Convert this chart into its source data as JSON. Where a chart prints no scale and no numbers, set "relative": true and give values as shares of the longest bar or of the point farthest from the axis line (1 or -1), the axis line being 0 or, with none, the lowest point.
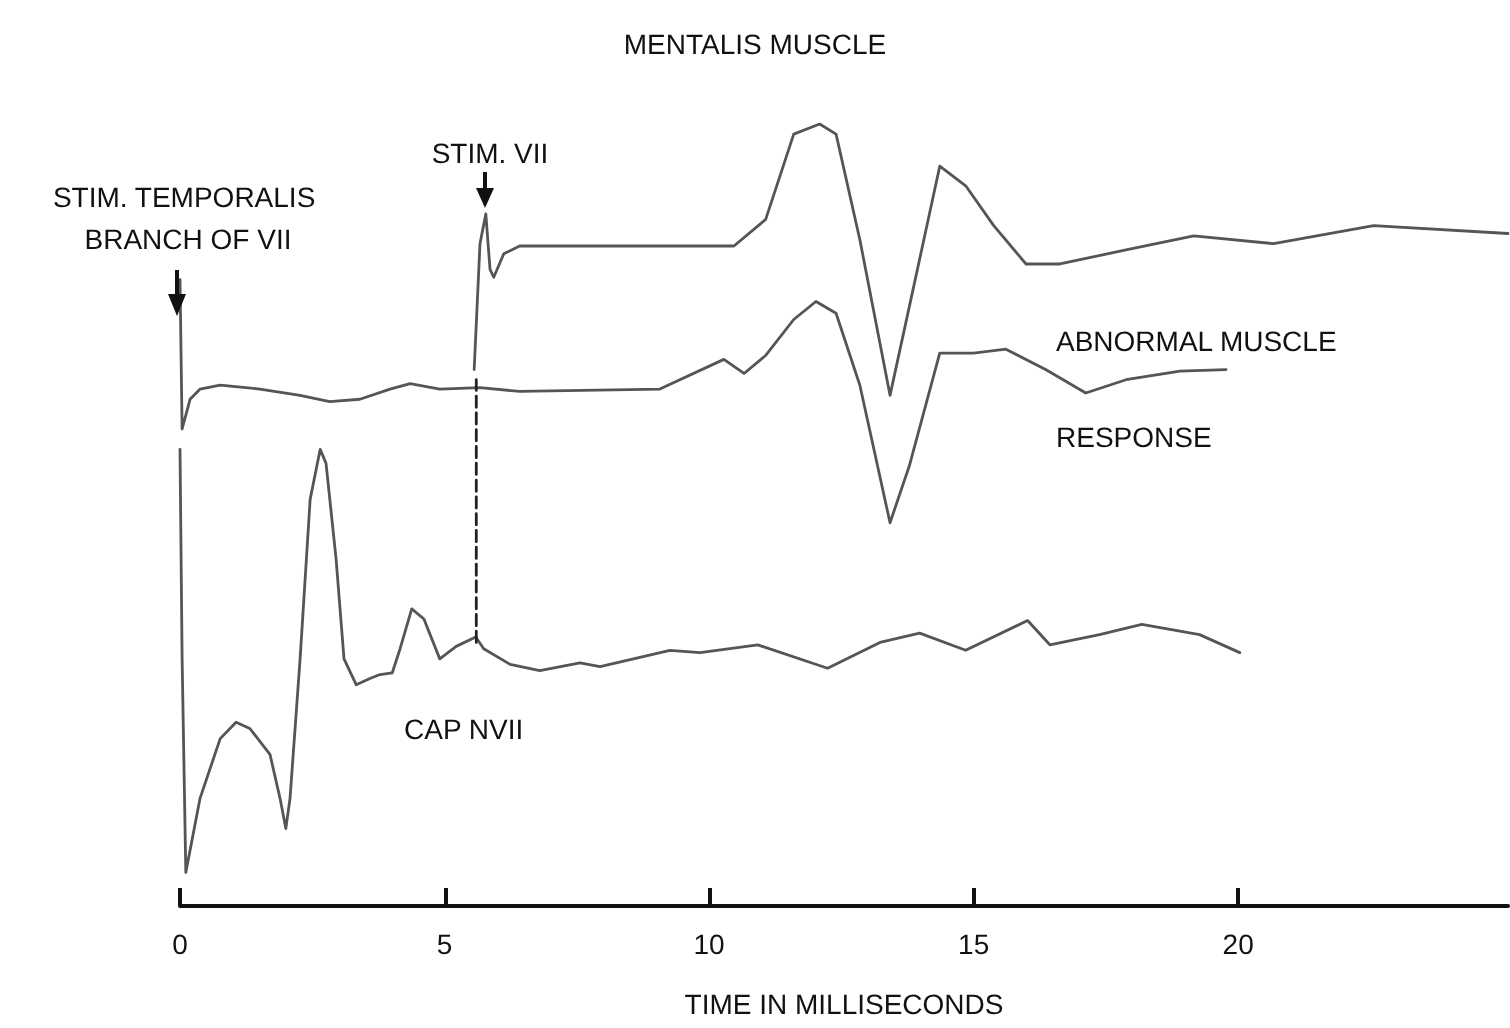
{
  "chart_data": {
    "type": "line",
    "relative": true,
    "title": "MENTALIS MUSCLE",
    "xlabel": "TIME IN MILLISECONDS",
    "xlim": [
      0,
      25.1
    ],
    "xticks": [
      0,
      5,
      10,
      15,
      20
    ],
    "tick_labels": "x",
    "grid": false,
    "marker": "none",
    "line_style": "solid",
    "annotations": [
      "STIM. TEMPORALIS BRANCH OF VII",
      "STIM. VII",
      "ABNORMAL MUSCLE",
      "RESPONSE",
      "CAP NVII"
    ],
    "series": [
      {
        "color": "#555555",
        "x": [
          5.56,
          5.67,
          5.78,
          5.86,
          5.93,
          6.12,
          6.42,
          10.47,
          11.07,
          11.6,
          12.09,
          12.4,
          12.85,
          13.42,
          13.87,
          14.36,
          14.85,
          15.38,
          15.99,
          16.63,
          17.88,
          19.16,
          20.67,
          22.56,
          25.1
        ],
        "values": [
          0.686,
          0.847,
          0.885,
          0.814,
          0.804,
          0.834,
          0.844,
          0.844,
          0.878,
          0.987,
          1,
          0.987,
          0.852,
          0.653,
          0.793,
          0.946,
          0.921,
          0.87,
          0.821,
          0.821,
          0.839,
          0.857,
          0.847,
          0.87,
          0.86
        ]
      },
      {
        "color": "#555555",
        "x": [
          0,
          0.04,
          0.19,
          0.38,
          0.76,
          1.51,
          2.27,
          2.83,
          3.4,
          3.97,
          4.35,
          4.91,
          5.67,
          6.42,
          9.07,
          10.28,
          10.66,
          11.07,
          11.6,
          12.02,
          12.4,
          12.85,
          13.42,
          13.79,
          14.36,
          15.0,
          15.61,
          16.36,
          17.12,
          17.88,
          18.9,
          19.77
        ],
        "values": [
          0.801,
          0.61,
          0.648,
          0.661,
          0.666,
          0.661,
          0.653,
          0.645,
          0.648,
          0.661,
          0.668,
          0.661,
          0.663,
          0.658,
          0.661,
          0.699,
          0.681,
          0.704,
          0.75,
          0.773,
          0.758,
          0.666,
          0.49,
          0.564,
          0.707,
          0.707,
          0.712,
          0.686,
          0.656,
          0.673,
          0.684,
          0.686
        ]
      },
      {
        "color": "#555555",
        "x": [
          0,
          0.04,
          0.11,
          0.38,
          0.76,
          1.06,
          1.32,
          1.7,
          1.89,
          2.0,
          2.08,
          2.27,
          2.46,
          2.65,
          2.76,
          2.95,
          3.1,
          3.33,
          3.59,
          3.78,
          4.01,
          4.16,
          4.38,
          4.61,
          4.91,
          5.22,
          5.59,
          5.74,
          6.24,
          6.8,
          7.56,
          7.94,
          9.26,
          9.83,
          10.92,
          12.24,
          13.23,
          13.98,
          14.85,
          16.02,
          16.44,
          17.38,
          18.18,
          19.27,
          20.03
        ],
        "values": [
          0.584,
          0.316,
          0.043,
          0.138,
          0.214,
          0.235,
          0.227,
          0.194,
          0.138,
          0.099,
          0.138,
          0.316,
          0.52,
          0.584,
          0.566,
          0.444,
          0.316,
          0.283,
          0.291,
          0.296,
          0.298,
          0.329,
          0.38,
          0.367,
          0.316,
          0.332,
          0.344,
          0.329,
          0.309,
          0.301,
          0.311,
          0.306,
          0.327,
          0.324,
          0.334,
          0.304,
          0.337,
          0.349,
          0.327,
          0.365,
          0.334,
          0.347,
          0.36,
          0.347,
          0.324
        ]
      },
      {
        "color": "#222222",
        "line_style": "dashed",
        "x": [
          5.6,
          5.6
        ],
        "values": [
          0.337,
          0.673
        ]
      }
    ]
  }
}
